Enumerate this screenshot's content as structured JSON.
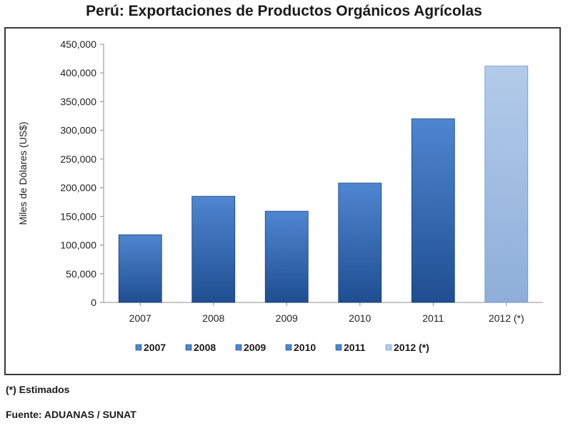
{
  "chart_data": {
    "type": "bar",
    "title": "Perú: Exportaciones de Productos Orgánicos Agrícolas",
    "xlabel": "",
    "ylabel": "Miles de Dólares (US$)",
    "categories": [
      "2007",
      "2008",
      "2009",
      "2010",
      "2011",
      "2012 (*)"
    ],
    "values": [
      118000,
      185000,
      159000,
      208000,
      320000,
      412000
    ],
    "ylim": [
      0,
      450000
    ],
    "ytick_step": 50000,
    "grid": false,
    "legend": {
      "position": "bottom",
      "entries": [
        "2007",
        "2008",
        "2009",
        "2010",
        "2011",
        "2012 (*)"
      ]
    },
    "colors": {
      "actual_top": "#4f86d0",
      "actual_bottom": "#1f4e91",
      "estimated_top": "#b3cbea",
      "estimated_bottom": "#8eaed9"
    }
  },
  "footnotes": {
    "estimated": "(*) Estimados",
    "source": "Fuente: ADUANAS / SUNAT"
  }
}
